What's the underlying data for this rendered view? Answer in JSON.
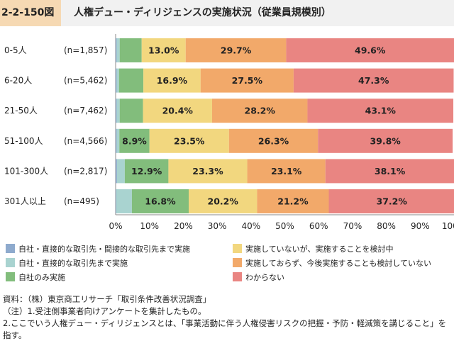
{
  "figure": {
    "id": "2-2-150図",
    "title": "人権デュー・ディリジェンスの実施状況（従業員規模別）"
  },
  "chart_data": {
    "type": "bar",
    "orientation": "horizontal",
    "stacked": true,
    "percent_axis": true,
    "categories": [
      "0-5人",
      "6-20人",
      "21-50人",
      "51-100人",
      "101-300人",
      "301人以上"
    ],
    "sample_sizes": [
      "(n=1,857)",
      "(n=5,462)",
      "(n=7,462)",
      "(n=4,566)",
      "(n=2,817)",
      "(n=495)"
    ],
    "series": [
      {
        "name": "自社・直接的な取引先・間接的な取引先まで実施",
        "color": "#8eaacd",
        "values": [
          0.3,
          0.3,
          0.3,
          0.3,
          0.4,
          0.2
        ],
        "labels": [
          "",
          "",
          "",
          "",
          "",
          ""
        ]
      },
      {
        "name": "自社・直接的な取引先まで実施",
        "color": "#a9d3d0",
        "values": [
          0.9,
          0.7,
          0.9,
          0.8,
          2.3,
          4.6
        ],
        "labels": [
          "",
          "",
          "",
          "",
          "",
          ""
        ]
      },
      {
        "name": "自社のみ実施",
        "color": "#82bd7c",
        "values": [
          6.5,
          7.2,
          6.9,
          8.9,
          12.9,
          16.8
        ],
        "labels": [
          "",
          "",
          "",
          "8.9%",
          "12.9%",
          "16.8%"
        ]
      },
      {
        "name": "実施していないが、実施することを検討中",
        "color": "#f2d77f",
        "values": [
          13.0,
          16.9,
          20.4,
          23.5,
          23.3,
          20.2
        ],
        "labels": [
          "13.0%",
          "16.9%",
          "20.4%",
          "23.5%",
          "23.3%",
          "20.2%"
        ]
      },
      {
        "name": "実施しておらず、今後実施することも検討していない",
        "color": "#f2a96a",
        "values": [
          29.7,
          27.5,
          28.2,
          26.3,
          23.1,
          21.2
        ],
        "labels": [
          "29.7%",
          "27.5%",
          "28.2%",
          "26.3%",
          "23.1%",
          "21.2%"
        ]
      },
      {
        "name": "わからない",
        "color": "#e98582",
        "values": [
          49.6,
          47.3,
          43.1,
          39.8,
          38.1,
          37.2
        ],
        "labels": [
          "49.6%",
          "47.3%",
          "43.1%",
          "39.8%",
          "38.1%",
          "37.2%"
        ]
      }
    ],
    "xticks": [
      "0%",
      "10%",
      "20%",
      "30%",
      "40%",
      "50%",
      "60%",
      "70%",
      "80%",
      "90%",
      "100%"
    ],
    "xlim": [
      0,
      100
    ],
    "legend_position": "bottom"
  },
  "notes": {
    "source": "資料：（株）東京商工リサーチ「取引条件改善状況調査」",
    "note1": "（注）1.受注側事業者向けアンケートを集計したもの。",
    "note2a": "2.ここでいう人権デュー・ディリジェンスとは、「事業活動に伴う人権侵害リスクの把握・予防・軽減策を講じること」を",
    "note2b": "指す。"
  }
}
